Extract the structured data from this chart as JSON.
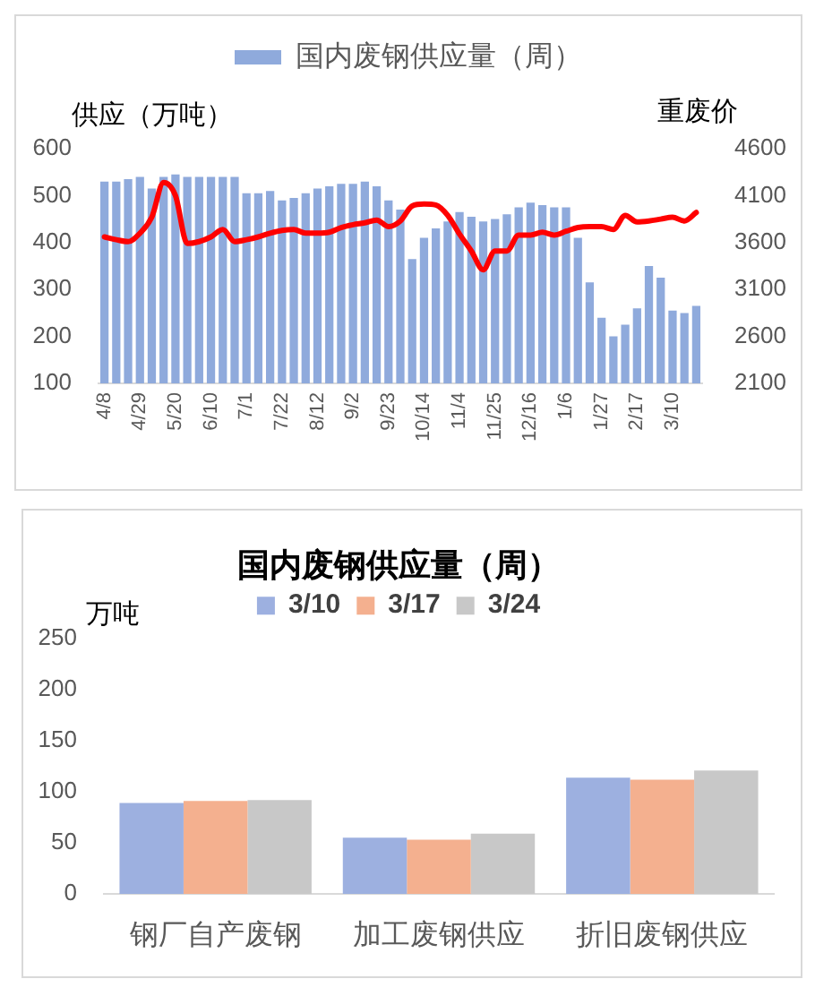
{
  "chart_data": [
    {
      "type": "bar",
      "legend": "top",
      "ylabel": "供应（万吨）",
      "y2label": "重废价",
      "categories": [
        "4/8",
        null,
        null,
        "4/29",
        null,
        null,
        "5/20",
        null,
        null,
        "6/10",
        null,
        null,
        "7/1",
        null,
        null,
        "7/22",
        null,
        null,
        "8/12",
        null,
        null,
        "9/2",
        null,
        null,
        "9/23",
        null,
        null,
        "10/14",
        null,
        null,
        "11/4",
        null,
        null,
        "11/25",
        null,
        null,
        "12/16",
        null,
        null,
        "1/6",
        null,
        null,
        "1/27",
        null,
        null,
        "2/17",
        null,
        null,
        "3/10",
        null,
        null
      ],
      "ylim": [
        100,
        600
      ],
      "yticks": [
        100,
        200,
        300,
        400,
        500,
        600
      ],
      "y2lim": [
        2100,
        4600
      ],
      "y2ticks": [
        2100,
        2600,
        3100,
        3600,
        4100,
        4600
      ],
      "series": [
        {
          "name": "国内废钢供应量（周）",
          "color": "#8faadc",
          "values": [
            530,
            530,
            535,
            540,
            515,
            540,
            545,
            540,
            540,
            540,
            540,
            540,
            505,
            505,
            510,
            490,
            495,
            505,
            515,
            520,
            525,
            525,
            530,
            520,
            490,
            470,
            365,
            410,
            430,
            445,
            465,
            455,
            445,
            450,
            460,
            475,
            485,
            480,
            475,
            475,
            410,
            315,
            240,
            200,
            225,
            260,
            350,
            325,
            255,
            250,
            265
          ]
        },
        {
          "type": "line",
          "axis": "y2",
          "color": "#ff0000",
          "values": [
            3660,
            3630,
            3610,
            3700,
            3870,
            4240,
            4100,
            3590,
            3610,
            3660,
            3740,
            3610,
            3630,
            3660,
            3700,
            3730,
            3740,
            3700,
            3700,
            3710,
            3760,
            3790,
            3810,
            3840,
            3770,
            3830,
            3990,
            4010,
            4000,
            3890,
            3690,
            3510,
            3310,
            3510,
            3510,
            3680,
            3680,
            3710,
            3680,
            3720,
            3760,
            3770,
            3770,
            3740,
            3890,
            3820,
            3830,
            3850,
            3870,
            3830,
            3920
          ]
        }
      ]
    },
    {
      "type": "bar",
      "title": "国内废钢供应量（周）",
      "legend": "top",
      "ylabel": "万吨",
      "categories": [
        "钢厂自产废钢",
        "加工废钢供应",
        "折旧废钢供应"
      ],
      "ylim": [
        0,
        250
      ],
      "yticks": [
        0,
        50,
        100,
        150,
        200,
        250
      ],
      "series": [
        {
          "name": "3/10",
          "color": "#9db0e0",
          "values": [
            89,
            55,
            114
          ]
        },
        {
          "name": "3/17",
          "color": "#f4b08f",
          "values": [
            91,
            53,
            112
          ]
        },
        {
          "name": "3/24",
          "color": "#c8c8c8",
          "values": [
            92,
            59,
            121
          ]
        }
      ]
    }
  ]
}
